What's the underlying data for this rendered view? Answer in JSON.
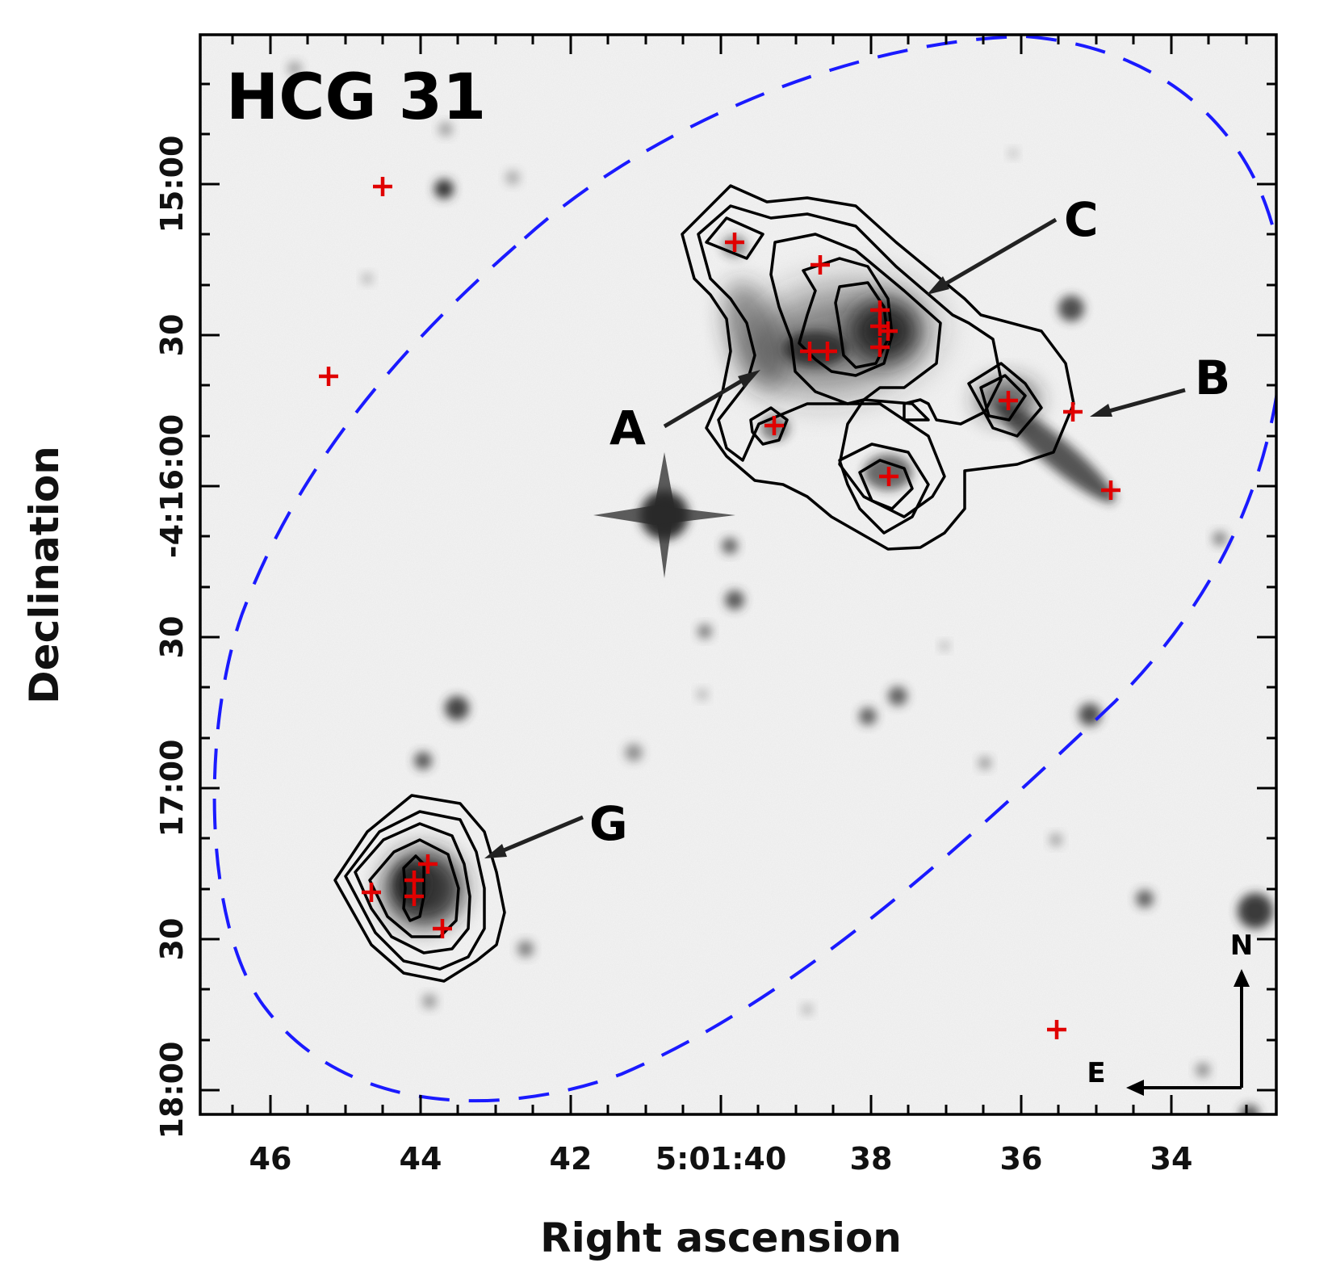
{
  "title": "HCG 31",
  "xlabel": "Right ascension",
  "ylabel": "Declination",
  "x_ticks": [
    "46",
    "44",
    "42",
    "5:01:40",
    "38",
    "36",
    "34"
  ],
  "y_ticks": [
    "15:00",
    "30",
    "-4:16:00",
    "30",
    "17:00",
    "30",
    "18:00"
  ],
  "galaxy_labels": [
    "A",
    "B",
    "C",
    "G"
  ],
  "compass": {
    "north": "N",
    "east": "E"
  },
  "colors": {
    "sources": "#e00000",
    "aperture": "#1a1aff",
    "contours": "#000000"
  }
}
